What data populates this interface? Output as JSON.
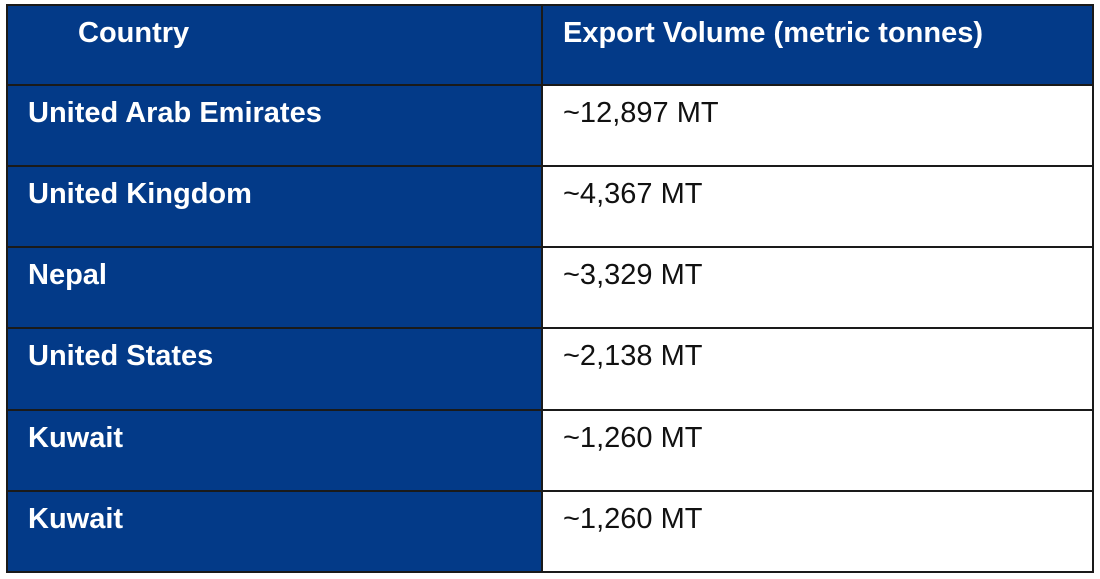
{
  "table": {
    "header": [
      "Country",
      "Export Volume (metric tonnes)"
    ],
    "rows": [
      [
        "United Arab Emirates",
        "~12,897 MT"
      ],
      [
        "United Kingdom",
        "~4,367 MT"
      ],
      [
        "Nepal",
        "~3,329 MT"
      ],
      [
        "United States",
        "~2,138 MT"
      ],
      [
        "Kuwait",
        "~1,260 MT"
      ],
      [
        "Kuwait",
        "~1,260 MT"
      ]
    ]
  }
}
